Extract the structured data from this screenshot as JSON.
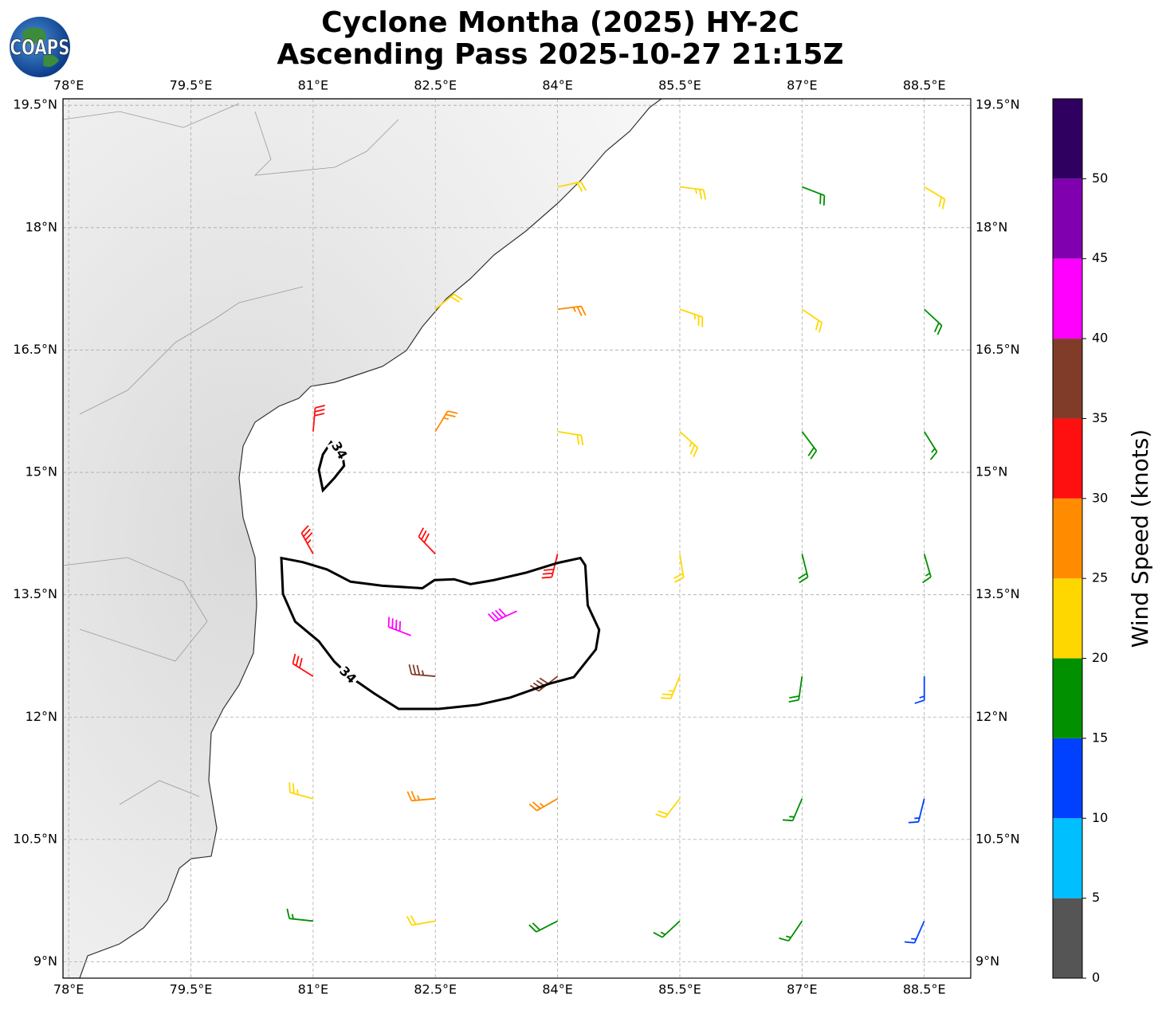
{
  "chart_data": {
    "type": "wind_barbs",
    "title": "Cyclone Montha (2025) HY-2C",
    "subtitle": "Ascending Pass 2025-10-27 21:15Z",
    "logo": "COAPS",
    "xlim": [
      77.93,
      89.07
    ],
    "ylim": [
      8.8,
      19.58
    ],
    "xticks": [
      {
        "value": 78,
        "label": "78°E"
      },
      {
        "value": 79.5,
        "label": "79.5°E"
      },
      {
        "value": 81,
        "label": "81°E"
      },
      {
        "value": 82.5,
        "label": "82.5°E"
      },
      {
        "value": 84,
        "label": "84°E"
      },
      {
        "value": 85.5,
        "label": "85.5°E"
      },
      {
        "value": 87,
        "label": "87°E"
      },
      {
        "value": 88.5,
        "label": "88.5°E"
      }
    ],
    "yticks": [
      {
        "value": 9,
        "label": "9°N"
      },
      {
        "value": 10.5,
        "label": "10.5°N"
      },
      {
        "value": 12,
        "label": "12°N"
      },
      {
        "value": 13.5,
        "label": "13.5°N"
      },
      {
        "value": 15,
        "label": "15°N"
      },
      {
        "value": 16.5,
        "label": "16.5°N"
      },
      {
        "value": 18,
        "label": "18°N"
      },
      {
        "value": 19.5,
        "label": "19.5°N"
      }
    ],
    "grid": true,
    "barbs": {
      "lon": [
        81,
        82.5,
        84,
        85.5,
        87,
        88.5,
        81,
        82.5,
        84,
        85.5,
        87,
        88.5,
        81,
        82.5,
        84,
        85.5,
        87,
        88.5,
        81,
        82.5,
        84,
        85.5,
        87,
        88.5,
        81,
        82.5,
        84,
        85.5,
        87,
        88.5,
        82.5,
        84,
        85.5,
        87,
        88.5,
        84,
        85.5,
        87,
        88.5,
        83.5,
        82.2
      ],
      "lat": [
        9.5,
        9.5,
        9.5,
        9.5,
        9.5,
        9.5,
        11,
        11,
        11,
        11,
        11,
        11,
        12.5,
        12.5,
        12.5,
        12.5,
        12.5,
        12.5,
        14,
        14,
        14,
        14,
        14,
        14,
        15.5,
        15.5,
        15.5,
        15.5,
        15.5,
        15.5,
        17,
        17,
        17,
        17,
        17,
        18.5,
        18.5,
        18.5,
        18.5,
        13.3,
        13.0
      ],
      "speed": [
        17,
        22,
        18,
        17,
        16,
        13,
        23,
        27,
        26,
        21,
        17,
        13,
        32,
        37,
        38,
        23,
        18,
        14,
        33,
        32,
        30,
        22,
        19,
        17,
        32,
        27,
        22,
        23,
        18,
        17,
        22,
        26,
        23,
        22,
        18,
        22,
        23,
        18,
        21,
        42,
        41
      ],
      "direction": [
        276,
        260,
        243,
        227,
        214,
        204,
        285,
        265,
        240,
        218,
        203,
        194,
        302,
        275,
        232,
        202,
        188,
        180,
        331,
        316,
        194,
        171,
        166,
        164,
        5,
        31,
        99,
        132,
        143,
        148,
        51,
        83,
        109,
        124,
        133,
        78,
        97,
        111,
        121,
        245,
        291
      ]
    },
    "contour": {
      "level": 34,
      "polygons": [
        [
          [
            80.61,
            13.95
          ],
          [
            80.87,
            13.9
          ],
          [
            81.17,
            13.81
          ],
          [
            81.46,
            13.66
          ],
          [
            81.85,
            13.61
          ],
          [
            82.34,
            13.58
          ],
          [
            82.49,
            13.68
          ],
          [
            82.73,
            13.69
          ],
          [
            82.93,
            13.63
          ],
          [
            83.22,
            13.68
          ],
          [
            83.61,
            13.77
          ],
          [
            84.0,
            13.89
          ],
          [
            84.28,
            13.95
          ],
          [
            84.34,
            13.86
          ],
          [
            84.37,
            13.37
          ],
          [
            84.51,
            13.07
          ],
          [
            84.47,
            12.83
          ],
          [
            84.2,
            12.49
          ],
          [
            83.9,
            12.41
          ],
          [
            83.42,
            12.24
          ],
          [
            83.02,
            12.15
          ],
          [
            82.54,
            12.1
          ],
          [
            82.05,
            12.1
          ],
          [
            81.75,
            12.29
          ],
          [
            81.46,
            12.49
          ],
          [
            81.26,
            12.68
          ],
          [
            81.07,
            12.93
          ],
          [
            80.78,
            13.17
          ],
          [
            80.63,
            13.51
          ]
        ],
        [
          [
            81.22,
            15.37
          ],
          [
            81.36,
            15.22
          ],
          [
            81.38,
            15.08
          ],
          [
            81.26,
            14.93
          ],
          [
            81.12,
            14.78
          ],
          [
            81.07,
            15.03
          ],
          [
            81.12,
            15.22
          ]
        ]
      ]
    },
    "colorbar": {
      "label": "Wind Speed (knots)",
      "bounds": [
        0,
        5,
        10,
        15,
        20,
        25,
        30,
        35,
        40,
        45,
        50,
        55
      ],
      "colors": [
        "#555555",
        "#00bfff",
        "#0040ff",
        "#009000",
        "#ffd700",
        "#ff8c00",
        "#ff1010",
        "#803c28",
        "#ff00ff",
        "#8000b0",
        "#300060"
      ],
      "ticks": [
        0,
        5,
        10,
        15,
        20,
        25,
        30,
        35,
        40,
        45,
        50
      ]
    }
  }
}
